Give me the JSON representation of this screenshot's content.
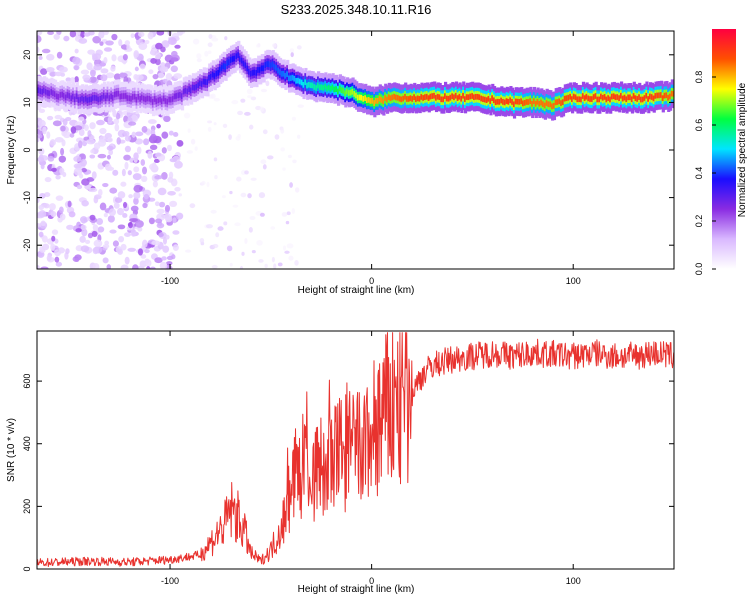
{
  "figure_title": "S233.2025.348.10.11.R16",
  "chart_data": [
    {
      "type": "heatmap",
      "title": "S233.2025.348.10.11.R16",
      "xlabel": "Height of straight line (km)",
      "ylabel": "Frequency (Hz)",
      "xlim": [
        -166,
        150
      ],
      "ylim": [
        -25,
        25
      ],
      "xticks": [
        -100,
        0,
        100
      ],
      "yticks": [
        -20,
        -10,
        0,
        10,
        20
      ],
      "colorbar": {
        "label": "Normalized spectral amplitude",
        "range": [
          0,
          1
        ],
        "ticks": [
          0.0,
          0.2,
          0.4,
          0.6,
          0.8
        ],
        "colors": [
          "#ffffff",
          "#d9b8ff",
          "#8a2be2",
          "#1a0dff",
          "#00e5ff",
          "#00ff40",
          "#ffff00",
          "#ff5000",
          "#ff0040"
        ]
      },
      "ridge": {
        "x": [
          -166,
          -155,
          -140,
          -125,
          -110,
          -100,
          -90,
          -80,
          -72,
          -66,
          -60,
          -50,
          -40,
          -30,
          -20,
          -10,
          -5,
          0,
          10,
          30,
          50,
          70,
          80,
          90,
          100,
          110,
          120,
          130,
          140,
          150
        ],
        "freq": [
          12.5,
          11.5,
          10.5,
          11.5,
          10.5,
          10.5,
          12.5,
          15,
          18,
          20,
          16,
          18,
          15,
          13.5,
          13,
          12,
          11,
          10,
          11,
          11,
          11,
          10,
          10,
          9.5,
          11,
          11,
          11,
          11,
          11,
          11.5
        ],
        "amplitude": [
          0.3,
          0.25,
          0.3,
          0.25,
          0.25,
          0.25,
          0.3,
          0.35,
          0.4,
          0.35,
          0.35,
          0.4,
          0.45,
          0.55,
          0.6,
          0.7,
          0.75,
          0.8,
          0.85,
          0.9,
          0.9,
          0.9,
          0.85,
          0.85,
          0.9,
          0.9,
          0.9,
          0.9,
          0.9,
          0.85
        ]
      },
      "noise_region_x": [
        -166,
        -95
      ]
    },
    {
      "type": "line",
      "title": "",
      "xlabel": "Height of straight line (km)",
      "ylabel": "SNR (10 * v/v)",
      "xlim": [
        -166,
        150
      ],
      "ylim": [
        0,
        760
      ],
      "xticks": [
        -100,
        0,
        100
      ],
      "yticks": [
        0,
        200,
        400,
        600
      ],
      "series": [
        {
          "name": "SNR",
          "color": "#e8322e",
          "x": [
            -166,
            -140,
            -120,
            -100,
            -85,
            -78,
            -73,
            -70,
            -67,
            -63,
            -60,
            -55,
            -50,
            -45,
            -40,
            -35,
            -30,
            -25,
            -20,
            -15,
            -10,
            -5,
            0,
            5,
            10,
            15,
            20,
            25,
            30,
            40,
            50,
            60,
            70,
            80,
            90,
            100,
            110,
            120,
            130,
            140,
            150
          ],
          "y": [
            20,
            25,
            22,
            30,
            45,
            100,
            140,
            190,
            170,
            120,
            50,
            25,
            60,
            130,
            260,
            330,
            300,
            320,
            330,
            380,
            390,
            370,
            430,
            480,
            520,
            530,
            560,
            620,
            650,
            670,
            680,
            690,
            680,
            690,
            685,
            680,
            690,
            680,
            680,
            690,
            680
          ]
        }
      ]
    }
  ]
}
